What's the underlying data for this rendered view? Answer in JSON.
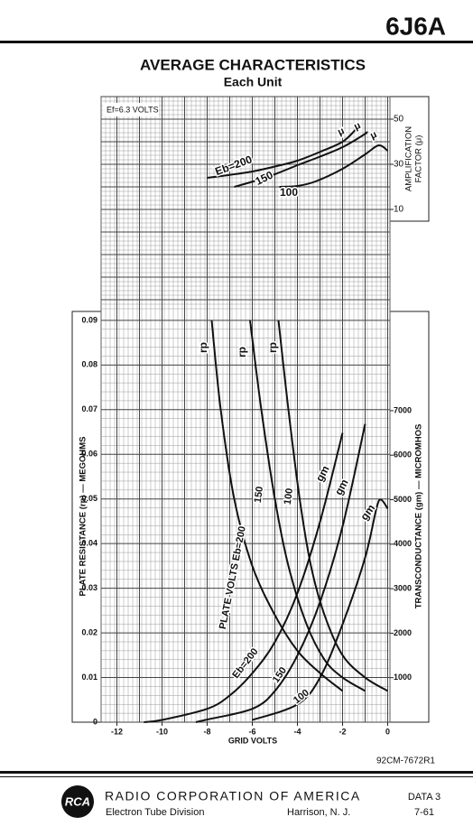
{
  "header": {
    "tube": "6J6A"
  },
  "chart_data": [
    {
      "type": "line",
      "title": "AVERAGE CHARACTERISTICS",
      "subtitle": "Each Unit",
      "annotation": "Ef=6.3 VOLTS",
      "ylabel": [
        "AMPLIFICATION",
        "FACTOR (μ)"
      ],
      "xlim": [
        -12.7,
        0.1
      ],
      "ylim": [
        5,
        60
      ],
      "yticks": [
        10,
        30,
        50
      ],
      "grid": true,
      "series": [
        {
          "name": "Eb=200",
          "label": "μ",
          "color": "#111111",
          "x": [
            -8,
            -7,
            -6,
            -5,
            -4,
            -3,
            -2,
            -1.4
          ],
          "values": [
            24,
            25.3,
            26.8,
            29,
            31.6,
            35.5,
            40,
            45.6
          ]
        },
        {
          "name": "150",
          "label": "μ",
          "color": "#111111",
          "x": [
            -6.8,
            -6,
            -5,
            -4,
            -3,
            -2,
            -1,
            -0.96
          ],
          "values": [
            20,
            22.3,
            25.6,
            29.6,
            33.4,
            37.6,
            43.5,
            44.4
          ]
        },
        {
          "name": "100",
          "label": "μ",
          "color": "#111111",
          "x": [
            -4.8,
            -4,
            -3.2,
            -2,
            -1,
            -0.4,
            0
          ],
          "values": [
            20,
            20.4,
            22.4,
            28,
            34.4,
            38.4,
            36
          ]
        }
      ]
    },
    {
      "type": "line",
      "xlabel": "GRID VOLTS",
      "ylabel": "PLATE RESISTANCE (rp) — MEGOHMS",
      "y2label": "TRANSCONDUCTANCE (gm) — MICROMHOS",
      "xlim": [
        -12.7,
        0.1
      ],
      "xticks": [
        -12,
        -10,
        -8,
        -6,
        -4,
        -2,
        0
      ],
      "ylim": [
        0,
        0.092
      ],
      "yticks": [
        0,
        0.01,
        0.02,
        0.03,
        0.04,
        0.05,
        0.06,
        0.07,
        0.08,
        0.09
      ],
      "y2lim": [
        0,
        9230
      ],
      "y2ticks": [
        1000,
        2000,
        3000,
        4000,
        5000,
        6000,
        7000
      ],
      "grid": true,
      "series": [
        {
          "name": "PLATE VOLTS Eb=200",
          "label": "rp",
          "color": "#111111",
          "x": [
            -7.8,
            -7.4,
            -6.8,
            -6,
            -5,
            -4,
            -3,
            -2
          ],
          "values": [
            0.09,
            0.07,
            0.05,
            0.035,
            0.024,
            0.016,
            0.011,
            0.007
          ]
        },
        {
          "name": "150",
          "label": "rp",
          "color": "#111111",
          "x": [
            -6.1,
            -5.6,
            -5,
            -4.4,
            -3.6,
            -2.8,
            -2,
            -1
          ],
          "values": [
            0.09,
            0.07,
            0.05,
            0.035,
            0.022,
            0.014,
            0.01,
            0.007
          ]
        },
        {
          "name": "100",
          "label": "rp",
          "color": "#111111",
          "x": [
            -4.84,
            -4.4,
            -3.9,
            -3.4,
            -2.8,
            -2,
            -1,
            0
          ],
          "values": [
            0.09,
            0.07,
            0.05,
            0.035,
            0.024,
            0.015,
            0.01,
            0.007
          ]
        },
        {
          "name": "Eb=200",
          "label": "gm",
          "color": "#111111",
          "axis": "y2",
          "x": [
            -10.8,
            -10,
            -8,
            -7,
            -6,
            -5,
            -4,
            -3,
            -2
          ],
          "values": [
            0,
            50,
            300,
            600,
            1100,
            1800,
            2900,
            4500,
            6500
          ]
        },
        {
          "name": "150",
          "label": "gm",
          "color": "#111111",
          "axis": "y2",
          "x": [
            -8.5,
            -8,
            -6,
            -5,
            -4,
            -3,
            -2,
            -1
          ],
          "values": [
            0,
            60,
            300,
            700,
            1500,
            2700,
            4400,
            6700
          ]
        },
        {
          "name": "100",
          "label": "gm",
          "color": "#111111",
          "axis": "y2",
          "x": [
            -6,
            -4,
            -3,
            -2,
            -1,
            -0.5,
            -0.3,
            0
          ],
          "values": [
            50,
            400,
            1000,
            2200,
            3700,
            4800,
            5000,
            4800
          ]
        }
      ]
    }
  ],
  "figure_code": "92CM-7672R1",
  "footer": {
    "company": "RADIO CORPORATION OF AMERICA",
    "logo": "RCA",
    "division": "Electron Tube Division",
    "location": "Harrison, N. J.",
    "sheet": "DATA 3",
    "date": "7-61"
  }
}
